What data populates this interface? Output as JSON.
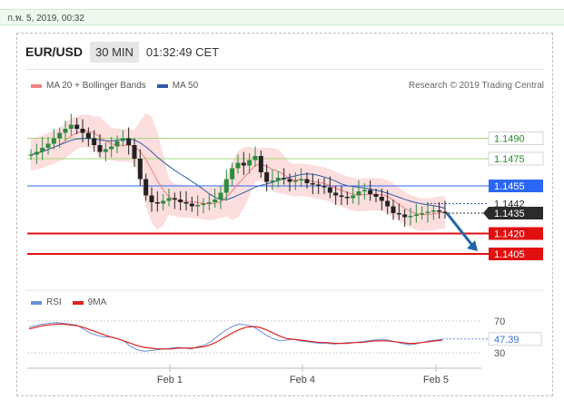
{
  "date_bar": {
    "text": "ก.พ. 5, 2019, 00:32"
  },
  "header": {
    "pair": "EUR/USD",
    "timeframe": "30 MIN",
    "clock": "01:32:49 CET"
  },
  "legend": {
    "ma20_label": "MA 20 + Bollinger Bands",
    "ma50_label": "MA 50",
    "ma20_color": "#f08080",
    "ma50_color": "#2f5aa8"
  },
  "research_credit": "Research © 2019 Trading Central",
  "rsi_legend": {
    "rsi_label": "RSI",
    "ma9_label": "9MA",
    "rsi_color": "#6b8fd6",
    "ma9_color": "#dd2222"
  },
  "chart_data": [
    {
      "type": "candlestick",
      "title": "EUR/USD",
      "ylim": [
        1.1385,
        1.1525
      ],
      "x_ticks": [
        "Feb 1",
        "Feb 4",
        "Feb 5"
      ],
      "levels": [
        {
          "value": "1.1490",
          "kind": "target",
          "color": "#9ed56b"
        },
        {
          "value": "1.1475",
          "kind": "target",
          "color": "#9ed56b"
        },
        {
          "value": "1.1455",
          "kind": "pivot",
          "color": "#2b67f6"
        },
        {
          "value": "1.1420",
          "kind": "support",
          "color": "#e01010"
        },
        {
          "value": "1.1405",
          "kind": "support",
          "color": "#e01010"
        }
      ],
      "extra_labels": [
        {
          "value": "1.1442",
          "kind": "ma50_value"
        },
        {
          "value": "1.1435",
          "kind": "last_price"
        }
      ],
      "price_path": [
        1.1478,
        1.148,
        1.1483,
        1.1486,
        1.149,
        1.1494,
        1.1497,
        1.15,
        1.1497,
        1.1494,
        1.149,
        1.1485,
        1.148,
        1.1482,
        1.1484,
        1.1488,
        1.149,
        1.1485,
        1.1475,
        1.146,
        1.1448,
        1.1443,
        1.1442,
        1.1444,
        1.1446,
        1.1445,
        1.1443,
        1.1442,
        1.144,
        1.1441,
        1.1442,
        1.1443,
        1.1445,
        1.145,
        1.146,
        1.1468,
        1.1472,
        1.147,
        1.1474,
        1.1477,
        1.1465,
        1.1458,
        1.1459,
        1.1461,
        1.146,
        1.1458,
        1.1459,
        1.146,
        1.1457,
        1.1456,
        1.1455,
        1.1454,
        1.145,
        1.1448,
        1.1447,
        1.1446,
        1.1448,
        1.1451,
        1.1452,
        1.1449,
        1.1447,
        1.1444,
        1.144,
        1.1435,
        1.1434,
        1.1432,
        1.1433,
        1.1434,
        1.1435,
        1.1436,
        1.1437,
        1.1436,
        1.1435
      ]
    },
    {
      "type": "line",
      "title": "RSI",
      "ylim": [
        20,
        80
      ],
      "y_ticks": [
        "70",
        "30"
      ],
      "last_value": "47.39",
      "rsi_path": [
        62,
        64,
        66,
        67,
        68,
        67,
        66,
        65,
        60,
        55,
        52,
        50,
        50,
        48,
        45,
        38,
        34,
        32,
        33,
        34,
        35,
        36,
        37,
        36,
        35,
        38,
        40,
        45,
        52,
        58,
        63,
        66,
        65,
        63,
        58,
        52,
        48,
        45,
        46,
        47,
        45,
        44,
        43,
        42,
        42,
        41,
        42,
        43,
        43,
        44,
        45,
        46,
        47,
        46,
        44,
        42,
        40,
        41,
        43,
        45,
        46,
        47
      ],
      "ma9_path": [
        60,
        62,
        64,
        65,
        66,
        66,
        65,
        64,
        62,
        59,
        56,
        53,
        50,
        48,
        45,
        42,
        39,
        37,
        36,
        35,
        35,
        35,
        36,
        36,
        36,
        37,
        38,
        41,
        45,
        50,
        55,
        59,
        62,
        63,
        62,
        59,
        55,
        51,
        48,
        47,
        46,
        45,
        44,
        43,
        43,
        42,
        42,
        42,
        43,
        43,
        44,
        45,
        45,
        45,
        44,
        43,
        42,
        42,
        43,
        44,
        45,
        46
      ]
    }
  ]
}
